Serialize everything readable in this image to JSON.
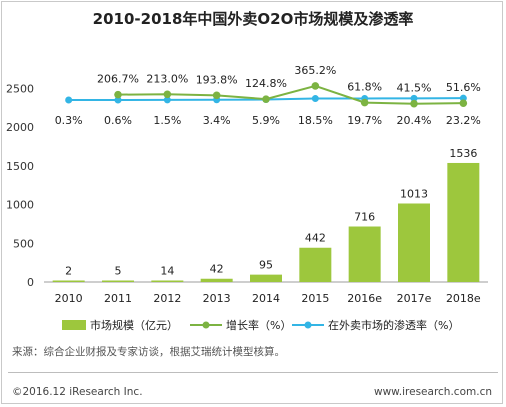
{
  "chart_data": {
    "type": "bar",
    "title": "2010-2018年中国外卖O2O市场规模及渗透率",
    "categories": [
      "2010",
      "2011",
      "2012",
      "2013",
      "2014",
      "2015",
      "2016e",
      "2017e",
      "2018e"
    ],
    "ylim": [
      0,
      3000
    ],
    "yticks": [
      0,
      500,
      1000,
      1500,
      2000,
      2500
    ],
    "grid": false,
    "legend_position": "bottom",
    "series": [
      {
        "name": "市场规模（亿元）",
        "kind": "bar",
        "color": "#9dc73d",
        "values": [
          2,
          5,
          14,
          42,
          95,
          442,
          716,
          1013,
          1536
        ],
        "labels": [
          "2",
          "5",
          "14",
          "42",
          "95",
          "442",
          "716",
          "1013",
          "1536"
        ]
      },
      {
        "name": "增长率（%）",
        "kind": "line",
        "color": "#7cb342",
        "values": [
          null,
          206.7,
          213.0,
          193.8,
          124.8,
          365.2,
          61.8,
          41.5,
          51.6
        ],
        "labels": [
          "",
          "206.7%",
          "213.0%",
          "193.8%",
          "124.8%",
          "365.2%",
          "61.8%",
          "41.5%",
          "51.6%"
        ]
      },
      {
        "name": "在外卖市场的渗透率（%）",
        "kind": "line",
        "color": "#33b5e5",
        "values": [
          0.3,
          0.6,
          1.5,
          3.4,
          5.9,
          18.5,
          19.7,
          20.4,
          23.2
        ],
        "labels": [
          "0.3%",
          "0.6%",
          "1.5%",
          "3.4%",
          "5.9%",
          "18.5%",
          "19.7%",
          "20.4%",
          "23.2%"
        ]
      }
    ]
  },
  "footer": {
    "source": "来源：综合企业财报及专家访谈，根据艾瑞统计模型核算。",
    "copyright": "©2016.12 iResearch Inc.",
    "website": "www.iresearch.com.cn"
  }
}
